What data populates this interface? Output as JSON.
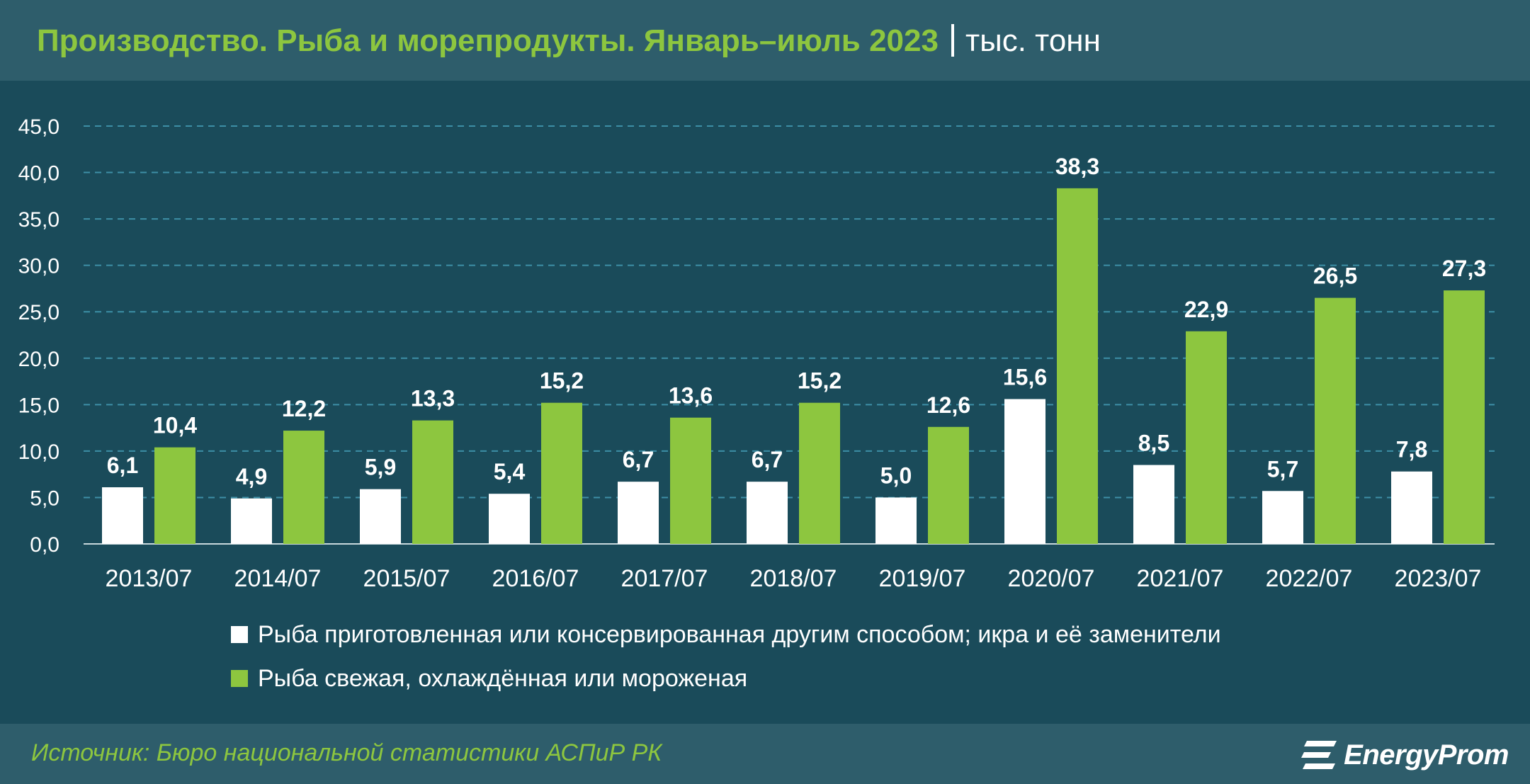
{
  "header": {
    "title": "Производство. Рыба и морепродукты. Январь–июль 2023",
    "unit": "тыс. тонн"
  },
  "footer": {
    "source": "Источник: Бюро национальной статистики АСПиР РК",
    "logo_text": "EnergyProm",
    "logo_icon": "energyprom-logo-icon"
  },
  "colors": {
    "background": "#1a4b5a",
    "band": "#2e5d6b",
    "accent_green": "#8dc63f",
    "white": "#ffffff",
    "grid": "#3d8fa6"
  },
  "chart_data": {
    "type": "bar",
    "categories": [
      "2013/07",
      "2014/07",
      "2015/07",
      "2016/07",
      "2017/07",
      "2018/07",
      "2019/07",
      "2020/07",
      "2021/07",
      "2022/07",
      "2023/07"
    ],
    "series": [
      {
        "name": "Рыба приготовленная или консервированная другим способом; икра и её заменители",
        "color": "#ffffff",
        "values": [
          6.1,
          4.9,
          5.9,
          5.4,
          6.7,
          6.7,
          5.0,
          15.6,
          8.5,
          5.7,
          7.8
        ],
        "labels": [
          "6,1",
          "4,9",
          "5,9",
          "5,4",
          "6,7",
          "6,7",
          "5,0",
          "15,6",
          "8,5",
          "5,7",
          "7,8"
        ]
      },
      {
        "name": "Рыба свежая, охлаждённая или мороженая",
        "color": "#8dc63f",
        "values": [
          10.4,
          12.2,
          13.3,
          15.2,
          13.6,
          15.2,
          12.6,
          38.3,
          22.9,
          26.5,
          27.3
        ],
        "labels": [
          "10,4",
          "12,2",
          "13,3",
          "15,2",
          "13,6",
          "15,2",
          "12,6",
          "38,3",
          "22,9",
          "26,5",
          "27,3"
        ]
      }
    ],
    "ylim": [
      0,
      45
    ],
    "yticks": [
      "0,0",
      "5,0",
      "10,0",
      "15,0",
      "20,0",
      "25,0",
      "30,0",
      "35,0",
      "40,0",
      "45,0"
    ],
    "grid": true,
    "legend_position": "bottom"
  }
}
